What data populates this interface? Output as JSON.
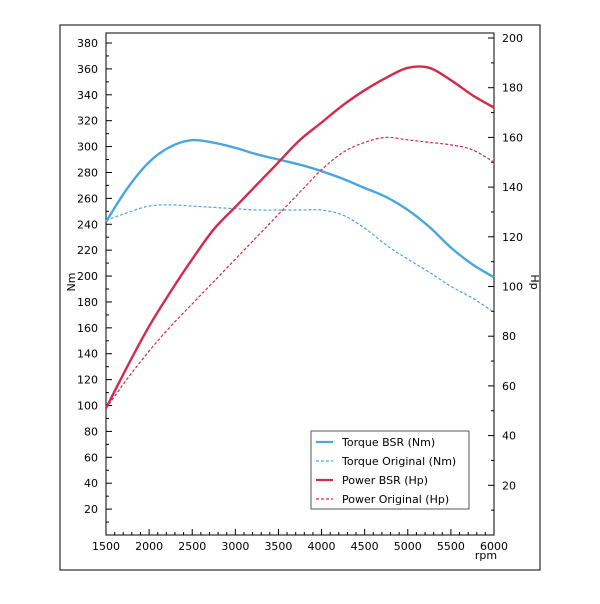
{
  "chart_data": {
    "type": "line",
    "title": "",
    "xlabel": "rpm",
    "ylabel_left": "Nm",
    "ylabel_right": "Hp",
    "xlim": [
      1500,
      6000
    ],
    "ylim_left": [
      0,
      390
    ],
    "ylim_right": [
      0,
      200
    ],
    "x_ticks": [
      1500,
      2000,
      2500,
      3000,
      3500,
      4000,
      4500,
      5000,
      5500,
      6000
    ],
    "y_left_ticks": [
      20,
      40,
      60,
      80,
      100,
      120,
      140,
      160,
      180,
      200,
      220,
      240,
      260,
      280,
      300,
      320,
      340,
      360,
      380
    ],
    "y_right_ticks": [
      20,
      40,
      60,
      80,
      100,
      120,
      140,
      160,
      180,
      200
    ],
    "grid": false,
    "legend_position": "bottom-right",
    "series": [
      {
        "name": "Torque BSR (Nm)",
        "axis": "left",
        "style": "solid",
        "color": "#4aa6dc",
        "points": [
          [
            1500,
            242
          ],
          [
            1750,
            268
          ],
          [
            2000,
            288
          ],
          [
            2250,
            300
          ],
          [
            2500,
            305
          ],
          [
            2750,
            303
          ],
          [
            3000,
            299
          ],
          [
            3250,
            294
          ],
          [
            3500,
            290
          ],
          [
            3750,
            286
          ],
          [
            4000,
            281
          ],
          [
            4250,
            275
          ],
          [
            4500,
            268
          ],
          [
            4750,
            261
          ],
          [
            5000,
            251
          ],
          [
            5250,
            238
          ],
          [
            5500,
            222
          ],
          [
            5750,
            209
          ],
          [
            6000,
            199
          ]
        ]
      },
      {
        "name": "Torque Original (Nm)",
        "axis": "left",
        "style": "dashed",
        "color": "#4aa6dc",
        "points": [
          [
            1500,
            243
          ],
          [
            1750,
            249
          ],
          [
            2000,
            254
          ],
          [
            2250,
            255
          ],
          [
            2500,
            254
          ],
          [
            2750,
            253
          ],
          [
            3000,
            252
          ],
          [
            3250,
            251
          ],
          [
            3500,
            251
          ],
          [
            3750,
            251
          ],
          [
            4000,
            251
          ],
          [
            4250,
            247
          ],
          [
            4500,
            237
          ],
          [
            4750,
            224
          ],
          [
            5000,
            213
          ],
          [
            5250,
            203
          ],
          [
            5500,
            192
          ],
          [
            5750,
            183
          ],
          [
            6000,
            172
          ]
        ]
      },
      {
        "name": "Power BSR (Hp)",
        "axis": "right",
        "style": "solid",
        "color": "#d42a4a",
        "points": [
          [
            1500,
            51
          ],
          [
            1750,
            68
          ],
          [
            2000,
            84
          ],
          [
            2250,
            98
          ],
          [
            2500,
            111
          ],
          [
            2750,
            123
          ],
          [
            3000,
            132
          ],
          [
            3250,
            141
          ],
          [
            3500,
            150
          ],
          [
            3750,
            159
          ],
          [
            4000,
            166
          ],
          [
            4250,
            173
          ],
          [
            4500,
            179
          ],
          [
            4750,
            184
          ],
          [
            5000,
            188
          ],
          [
            5250,
            188
          ],
          [
            5500,
            183
          ],
          [
            5750,
            177
          ],
          [
            6000,
            172
          ]
        ]
      },
      {
        "name": "Power Original (Hp)",
        "axis": "right",
        "style": "dashed",
        "color": "#d42a4a",
        "points": [
          [
            1500,
            51
          ],
          [
            1750,
            63
          ],
          [
            2000,
            74
          ],
          [
            2250,
            84
          ],
          [
            2500,
            93
          ],
          [
            2750,
            102
          ],
          [
            3000,
            111
          ],
          [
            3250,
            120
          ],
          [
            3500,
            129
          ],
          [
            3750,
            138
          ],
          [
            4000,
            147
          ],
          [
            4250,
            154
          ],
          [
            4500,
            158
          ],
          [
            4750,
            160
          ],
          [
            5000,
            159
          ],
          [
            5250,
            158
          ],
          [
            5500,
            157
          ],
          [
            5750,
            155
          ],
          [
            6000,
            150
          ]
        ]
      }
    ]
  }
}
